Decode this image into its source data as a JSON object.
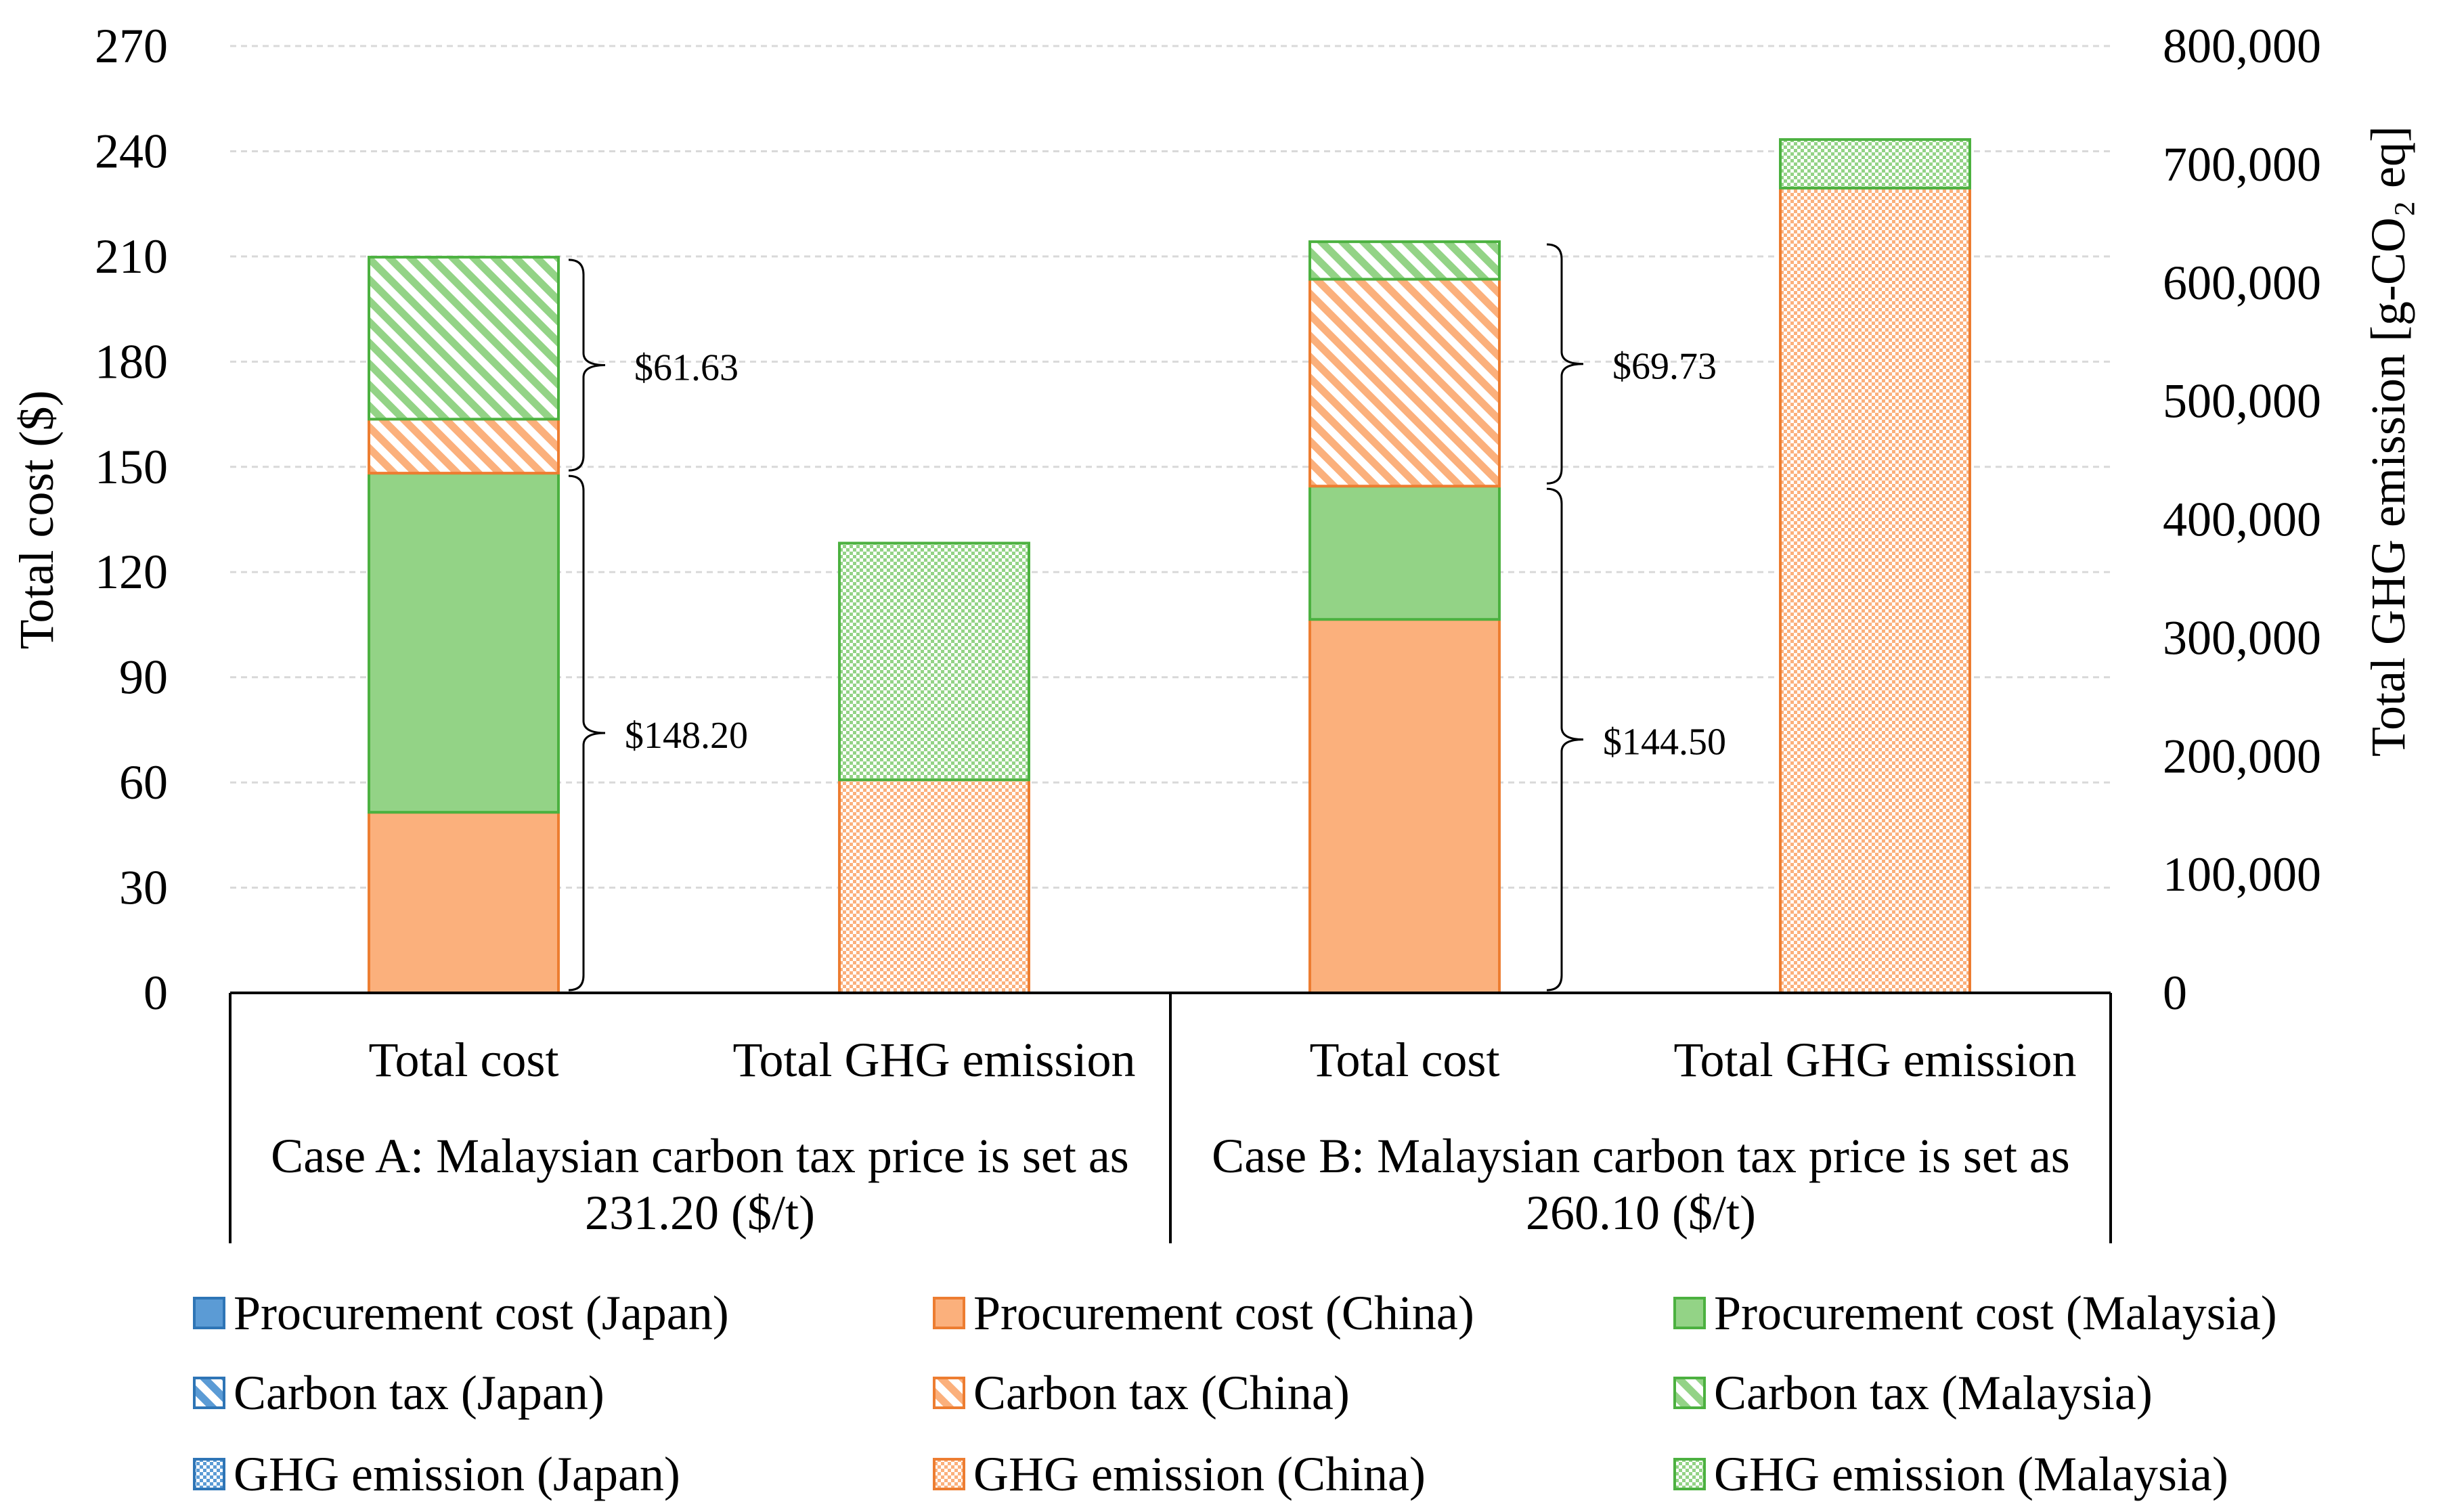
{
  "chart_data": {
    "type": "bar",
    "stacked": true,
    "title": "",
    "left_axis": {
      "label": "Total cost ($)",
      "range": [
        0,
        270
      ],
      "ticks": [
        "0",
        "30",
        "60",
        "90",
        "120",
        "150",
        "180",
        "210",
        "240",
        "270"
      ]
    },
    "right_axis": {
      "label": "Total GHG emission [g-CO₂ eq]",
      "range": [
        0,
        800000
      ],
      "ticks": [
        "0",
        "100,000",
        "200,000",
        "300,000",
        "400,000",
        "500,000",
        "600,000",
        "700,000",
        "800,000"
      ]
    },
    "groups": [
      {
        "label": "Case A: Malaysian carbon tax price is set as 231.20 ($/t)",
        "label_lines": [
          "Case A: Malaysian carbon tax price is set as",
          "231.20 ($/t)"
        ],
        "bars": [
          {
            "category": "Total cost",
            "axis": "left",
            "segments": [
              {
                "series": "Procurement cost (China)",
                "value": 51.5
              },
              {
                "series": "Procurement cost (Malaysia)",
                "value": 96.7
              },
              {
                "series": "Carbon tax (China)",
                "value": 15.4
              },
              {
                "series": "Carbon tax (Malaysia)",
                "value": 46.2
              }
            ]
          },
          {
            "category": "Total GHG emission",
            "axis": "right",
            "segments": [
              {
                "series": "GHG emission (China)",
                "value": 180000
              },
              {
                "series": "GHG emission (Malaysia)",
                "value": 200000
              }
            ]
          }
        ],
        "annotations": [
          {
            "text": "$148.20",
            "from": 0,
            "to": 148.2
          },
          {
            "text": "$61.63",
            "from": 148.2,
            "to": 209.8
          }
        ]
      },
      {
        "label": "Case B: Malaysian carbon tax price is set as 260.10 ($/t)",
        "label_lines": [
          "Case B: Malaysian carbon tax price is set as",
          "260.10 ($/t)"
        ],
        "bars": [
          {
            "category": "Total cost",
            "axis": "left",
            "segments": [
              {
                "series": "Procurement cost (China)",
                "value": 106.5
              },
              {
                "series": "Procurement cost (Malaysia)",
                "value": 38.0
              },
              {
                "series": "Carbon tax (China)",
                "value": 59.0
              },
              {
                "series": "Carbon tax (Malaysia)",
                "value": 10.7
              }
            ]
          },
          {
            "category": "Total GHG emission",
            "axis": "right",
            "segments": [
              {
                "series": "GHG emission (China)",
                "value": 680000
              },
              {
                "series": "GHG emission (Malaysia)",
                "value": 41000
              }
            ]
          }
        ],
        "annotations": [
          {
            "text": "$144.50",
            "from": 0,
            "to": 144.5
          },
          {
            "text": "$69.73",
            "from": 144.5,
            "to": 214.2
          }
        ]
      }
    ],
    "legend": [
      {
        "label": "Procurement cost (Japan)",
        "country": "japan",
        "pattern": "solid"
      },
      {
        "label": "Procurement cost (China)",
        "country": "china",
        "pattern": "solid"
      },
      {
        "label": "Procurement cost (Malaysia)",
        "country": "malaysia",
        "pattern": "solid"
      },
      {
        "label": "Carbon tax (Japan)",
        "country": "japan",
        "pattern": "hatch"
      },
      {
        "label": "Carbon tax (China)",
        "country": "china",
        "pattern": "hatch"
      },
      {
        "label": "Carbon tax (Malaysia)",
        "country": "malaysia",
        "pattern": "hatch"
      },
      {
        "label": "GHG emission (Japan)",
        "country": "japan",
        "pattern": "dots"
      },
      {
        "label": "GHG emission (China)",
        "country": "china",
        "pattern": "dots"
      },
      {
        "label": "GHG emission (Malaysia)",
        "country": "malaysia",
        "pattern": "dots"
      }
    ],
    "legend_position": "bottom",
    "colors": {
      "japan_fill": "#5b9bd5",
      "japan_edge": "#2e75b6",
      "china_fill": "#fbb07c",
      "china_edge": "#ed7d31",
      "malaysia_fill": "#93d386",
      "malaysia_edge": "#4cb140"
    }
  }
}
